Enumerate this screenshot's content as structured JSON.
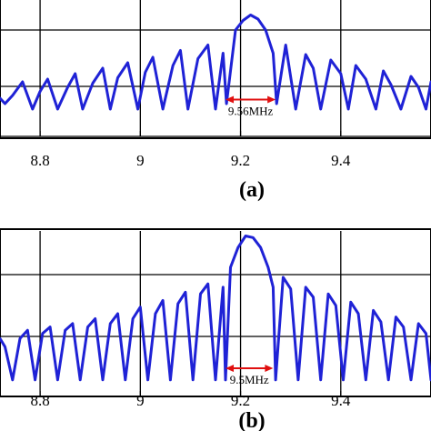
{
  "chart_data": [
    {
      "panel": "(a)",
      "type": "line",
      "line_color": "#1f22d6",
      "marker_color": "#e01010",
      "xlim": [
        8.72,
        9.58
      ],
      "ylim": [
        0,
        1
      ],
      "x_ticks": [
        "8.8",
        "9",
        "9.2",
        "9.4"
      ],
      "x_tick_values": [
        8.8,
        9.0,
        9.2,
        9.4
      ],
      "grid": true,
      "annotation": {
        "text": "9.56MHz",
        "x_from": 9.17,
        "x_to": 9.27,
        "y": 0.27
      },
      "series": [
        {
          "x": [
            8.72,
            8.73,
            8.745,
            8.765,
            8.785,
            8.8,
            8.815,
            8.835,
            8.855,
            8.87,
            8.885,
            8.905,
            8.925,
            8.94,
            8.955,
            8.975,
            8.995,
            9.01,
            9.025,
            9.045,
            9.065,
            9.08,
            9.095,
            9.115,
            9.135,
            9.15,
            9.165,
            9.172,
            9.19,
            9.205,
            9.22,
            9.235,
            9.25,
            9.265,
            9.272,
            9.29,
            9.31,
            9.33,
            9.345,
            9.36,
            9.38,
            9.4,
            9.415,
            9.43,
            9.45,
            9.47,
            9.485,
            9.5,
            9.52,
            9.54,
            9.555,
            9.57,
            9.58
          ],
          "y": [
            0.28,
            0.24,
            0.3,
            0.4,
            0.2,
            0.33,
            0.42,
            0.2,
            0.36,
            0.46,
            0.2,
            0.39,
            0.5,
            0.2,
            0.43,
            0.54,
            0.2,
            0.47,
            0.58,
            0.2,
            0.52,
            0.63,
            0.2,
            0.57,
            0.67,
            0.2,
            0.61,
            0.24,
            0.78,
            0.85,
            0.89,
            0.86,
            0.78,
            0.61,
            0.24,
            0.67,
            0.2,
            0.6,
            0.5,
            0.2,
            0.56,
            0.46,
            0.2,
            0.52,
            0.42,
            0.2,
            0.48,
            0.38,
            0.2,
            0.44,
            0.36,
            0.2,
            0.4
          ]
        }
      ]
    },
    {
      "panel": "(b)",
      "type": "line",
      "line_color": "#1f22d6",
      "marker_color": "#e01010",
      "xlim": [
        8.72,
        9.58
      ],
      "ylim": [
        0,
        1
      ],
      "x_ticks": [
        "8.8",
        "9",
        "9.2",
        "9.4"
      ],
      "x_tick_values": [
        8.8,
        9.0,
        9.2,
        9.4
      ],
      "grid": true,
      "annotation": {
        "text": "9.5MHz",
        "x_from": 9.17,
        "x_to": 9.265,
        "y": 0.17
      },
      "series": [
        {
          "x": [
            8.72,
            8.73,
            8.745,
            8.76,
            8.775,
            8.79,
            8.805,
            8.82,
            8.835,
            8.85,
            8.865,
            8.88,
            8.895,
            8.91,
            8.925,
            8.94,
            8.955,
            8.97,
            8.985,
            9.0,
            9.015,
            9.03,
            9.045,
            9.06,
            9.075,
            9.09,
            9.105,
            9.12,
            9.135,
            9.15,
            9.165,
            9.17,
            9.18,
            9.195,
            9.21,
            9.225,
            9.24,
            9.255,
            9.265,
            9.27,
            9.285,
            9.3,
            9.315,
            9.33,
            9.345,
            9.36,
            9.375,
            9.39,
            9.405,
            9.42,
            9.435,
            9.45,
            9.465,
            9.48,
            9.495,
            9.51,
            9.525,
            9.54,
            9.555,
            9.57,
            9.58
          ],
          "y": [
            0.35,
            0.3,
            0.1,
            0.35,
            0.4,
            0.1,
            0.38,
            0.42,
            0.1,
            0.4,
            0.44,
            0.1,
            0.42,
            0.47,
            0.1,
            0.44,
            0.5,
            0.1,
            0.47,
            0.54,
            0.1,
            0.5,
            0.58,
            0.1,
            0.56,
            0.63,
            0.1,
            0.62,
            0.68,
            0.1,
            0.66,
            0.1,
            0.78,
            0.9,
            0.97,
            0.96,
            0.9,
            0.78,
            0.66,
            0.1,
            0.72,
            0.65,
            0.1,
            0.66,
            0.6,
            0.1,
            0.62,
            0.55,
            0.1,
            0.57,
            0.5,
            0.1,
            0.52,
            0.45,
            0.1,
            0.48,
            0.42,
            0.1,
            0.44,
            0.38,
            0.1
          ]
        }
      ]
    }
  ]
}
